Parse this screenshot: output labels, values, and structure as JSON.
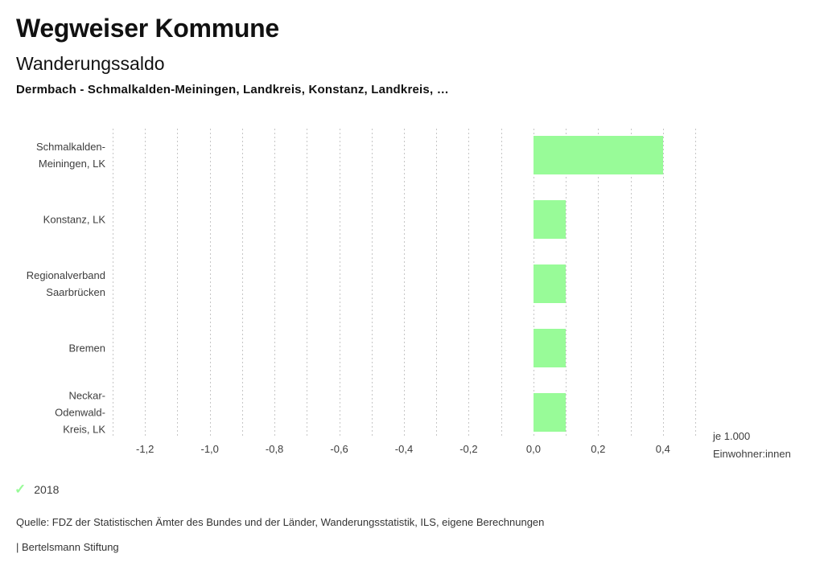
{
  "header": {
    "app_title": "Wegweiser Kommune",
    "indicator_title": "Wanderungssaldo",
    "selection": "Dermbach - Schmalkalden-Meiningen, Landkreis, Konstanz, Landkreis, …"
  },
  "chart_data": {
    "type": "bar",
    "orientation": "horizontal",
    "title": "Wanderungssaldo",
    "categories": [
      "Schmalkalden-\nMeiningen, LK",
      "Konstanz, LK",
      "Regionalverband\nSaarbrücken",
      "Bremen",
      "Neckar-\nOdenwald-\nKreis, LK"
    ],
    "series": [
      {
        "name": "2018",
        "values": [
          0.4,
          0.1,
          0.1,
          0.1,
          0.1
        ]
      }
    ],
    "xlim": [
      -1.3,
      0.5
    ],
    "gridline_step": 0.1,
    "xticks": [
      -1.2,
      -1.0,
      -0.8,
      -0.6,
      -0.4,
      -0.2,
      0.0,
      0.2,
      0.4
    ],
    "xtick_labels": [
      "-1,2",
      "-1,0",
      "-0,8",
      "-0,6",
      "-0,4",
      "-0,2",
      "0,0",
      "0,2",
      "0,4"
    ],
    "unit_label": "je 1.000\nEinwohner:innen",
    "bar_color": "#98fb98",
    "grid": true,
    "legend_position": "bottom-left"
  },
  "legend": {
    "year": "2018",
    "check_icon": "checkmark-icon",
    "check_color": "#98fb98"
  },
  "footer": {
    "source": "Quelle: FDZ der Statistischen Ämter des Bundes und der Länder, Wanderungsstatistik, ILS, eigene Berechnungen",
    "brand": "| Bertelsmann Stiftung"
  }
}
